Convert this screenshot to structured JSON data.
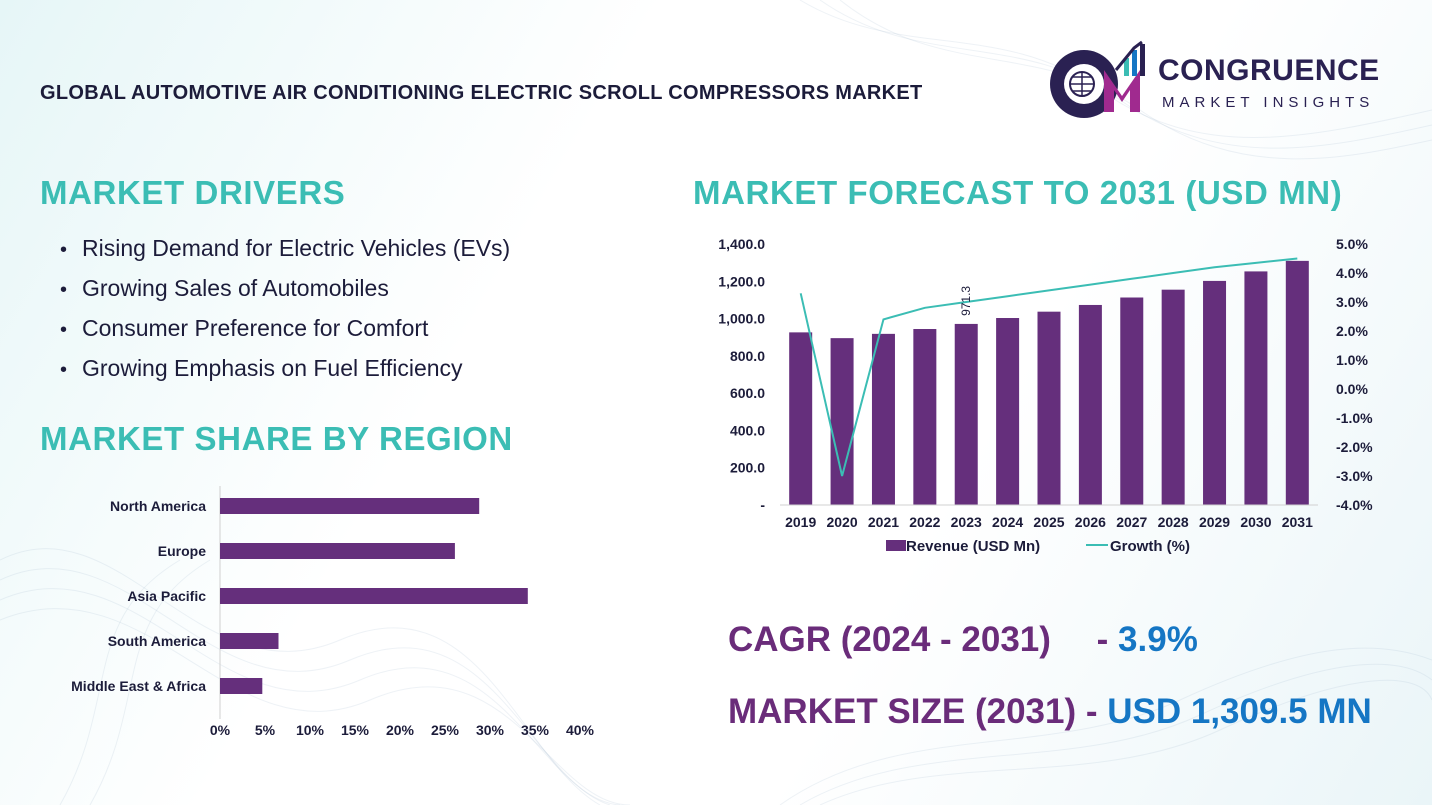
{
  "header": {
    "title": "GLOBAL AUTOMOTIVE AIR CONDITIONING ELECTRIC SCROLL COMPRESSORS MARKET",
    "logo_word1": "CONGRUENCE",
    "logo_word2": "MARKET INSIGHTS"
  },
  "drivers": {
    "title": "MARKET DRIVERS",
    "items": [
      "Rising Demand for Electric Vehicles (EVs)",
      "Growing Sales of Automobiles",
      "Consumer Preference for Comfort",
      "Growing Emphasis on Fuel Efficiency"
    ]
  },
  "region": {
    "title": "MARKET SHARE BY REGION"
  },
  "forecast": {
    "title": "MARKET FORECAST TO 2031 (USD MN)"
  },
  "cagr": {
    "label": "CAGR (2024 - 2031)",
    "dash": "-",
    "value": "3.9%"
  },
  "market_size": {
    "label": "MARKET SIZE (2031)",
    "dash": "-",
    "value": "USD  1,309.5 MN"
  },
  "colors": {
    "bar": "#652f7c",
    "line": "#3bbdb4",
    "title_teal": "#3bbdb4",
    "accent_blue": "#1576c4"
  },
  "chart_data": [
    {
      "type": "bar",
      "orientation": "horizontal",
      "categories": [
        "North America",
        "Europe",
        "Asia Pacific",
        "South America",
        "Middle East & Africa"
      ],
      "values": [
        28.8,
        26.1,
        34.2,
        6.5,
        4.7
      ],
      "xlim": [
        0,
        40
      ],
      "xticks": [
        "0%",
        "5%",
        "10%",
        "15%",
        "20%",
        "25%",
        "30%",
        "35%",
        "40%"
      ],
      "grid": false
    },
    {
      "type": "bar",
      "categories": [
        "2019",
        "2020",
        "2021",
        "2022",
        "2023",
        "2024",
        "2025",
        "2026",
        "2027",
        "2028",
        "2029",
        "2030",
        "2031"
      ],
      "series": [
        {
          "name": "Revenue (USD Mn)",
          "type": "bar",
          "axis": "left",
          "values": [
            926,
            895,
            918,
            944,
            971.3,
            1003,
            1037,
            1073,
            1113,
            1155,
            1202,
            1253,
            1309.5
          ]
        },
        {
          "name": "Growth (%)",
          "type": "line",
          "axis": "right",
          "values": [
            3.3,
            -3.0,
            2.4,
            2.8,
            3.0,
            3.2,
            3.4,
            3.6,
            3.8,
            4.0,
            4.2,
            4.35,
            4.5
          ]
        }
      ],
      "data_labels": [
        {
          "index": 4,
          "text": "971.3"
        }
      ],
      "ylim": [
        0,
        1400
      ],
      "yticks": [
        "-",
        "200.0",
        "400.0",
        "600.0",
        "800.0",
        "1,000.0",
        "1,200.0",
        "1,400.0"
      ],
      "y2lim": [
        -4,
        5
      ],
      "y2ticks": [
        "-4.0%",
        "-3.0%",
        "-2.0%",
        "-1.0%",
        "0.0%",
        "1.0%",
        "2.0%",
        "3.0%",
        "4.0%",
        "5.0%"
      ],
      "legend": "bottom",
      "grid": false
    }
  ]
}
